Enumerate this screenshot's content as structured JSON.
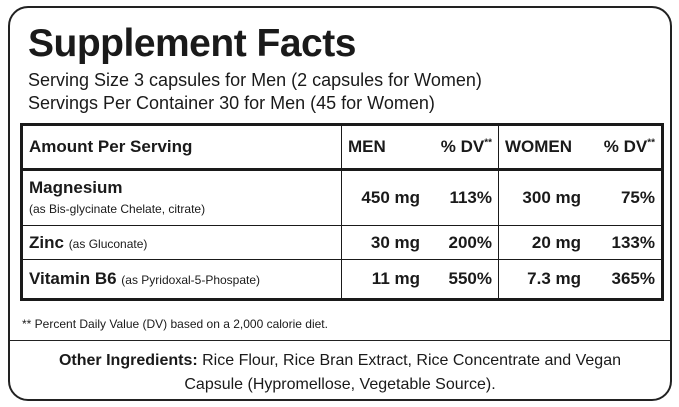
{
  "header": {
    "title": "Supplement Facts",
    "serving_size": "Serving Size 3 capsules for Men (2 capsules for Women)",
    "servings_per_container": "Servings Per Container 30 for Men (45 for Women)"
  },
  "table": {
    "columns": [
      {
        "label": "Amount Per Serving"
      },
      {
        "label": "MEN"
      },
      {
        "label": "% DV",
        "sup": "**"
      },
      {
        "label": "WOMEN"
      },
      {
        "label": "% DV",
        "sup": "**"
      }
    ],
    "rows": [
      {
        "name": "Magnesium",
        "note": "(as Bis-glycinate Chelate, citrate)",
        "men": "450 mg",
        "men_dv": "113%",
        "women": "300 mg",
        "women_dv": "75%"
      },
      {
        "name": "Zinc",
        "note": "(as Gluconate)",
        "men": "30 mg",
        "men_dv": "200%",
        "women": "20 mg",
        "women_dv": "133%"
      },
      {
        "name": "Vitamin B6",
        "note": "(as Pyridoxal-5-Phospate)",
        "men": "11 mg",
        "men_dv": "550%",
        "women": "7.3 mg",
        "women_dv": "365%"
      }
    ]
  },
  "footnote": "** Percent Daily Value (DV) based on a 2,000 calorie diet.",
  "other_ingredients": {
    "label": "Other Ingredients:",
    "text": "Rice Flour, Rice Bran Extract, Rice Concentrate and Vegan Capsule (Hypromellose, Vegetable Source)."
  }
}
